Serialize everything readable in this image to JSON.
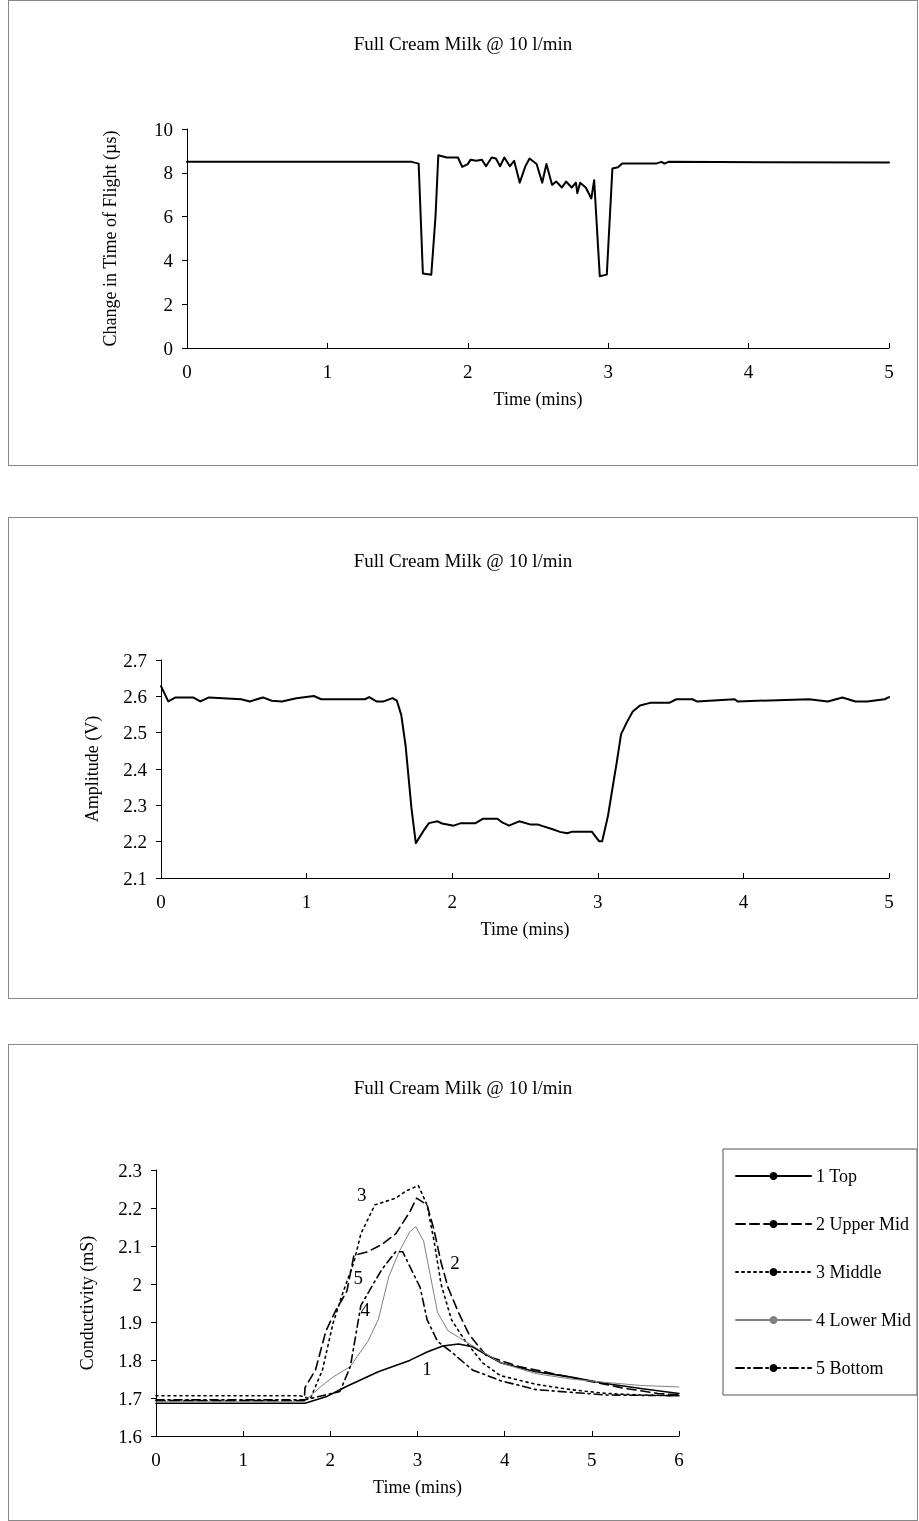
{
  "chart_data": [
    {
      "type": "line",
      "title": "Full Cream Milk @ 10 l/min",
      "xlabel": "Time (mins)",
      "ylabel": "Change in Time of Flight (µs)",
      "xlim": [
        0,
        5
      ],
      "xticks": [
        0,
        1,
        2,
        3,
        4,
        5
      ],
      "ylim": [
        0,
        10
      ],
      "yticks": [
        0,
        2,
        4,
        6,
        8,
        10
      ],
      "grid": false,
      "legend": false,
      "marker": "none",
      "line_style": "solid",
      "color": "#000000",
      "x": [
        0,
        1.6,
        1.65,
        1.68,
        1.74,
        1.77,
        1.79,
        1.85,
        1.93,
        1.96,
        2.0,
        2.02,
        2.06,
        2.1,
        2.13,
        2.17,
        2.2,
        2.23,
        2.26,
        2.3,
        2.33,
        2.37,
        2.41,
        2.44,
        2.49,
        2.53,
        2.56,
        2.6,
        2.63,
        2.67,
        2.7,
        2.74,
        2.77,
        2.78,
        2.8,
        2.84,
        2.88,
        2.9,
        2.94,
        2.99,
        3.03,
        3.07,
        3.1,
        3.34,
        3.38,
        3.4,
        3.43,
        5.0
      ],
      "values": [
        8.5,
        8.5,
        8.42,
        3.4,
        3.35,
        6.0,
        8.8,
        8.7,
        8.7,
        8.27,
        8.4,
        8.6,
        8.55,
        8.6,
        8.3,
        8.7,
        8.65,
        8.3,
        8.7,
        8.3,
        8.55,
        7.55,
        8.3,
        8.65,
        8.4,
        7.55,
        8.4,
        7.45,
        7.6,
        7.33,
        7.6,
        7.33,
        7.55,
        7.07,
        7.55,
        7.33,
        6.83,
        7.66,
        3.28,
        3.35,
        8.2,
        8.25,
        8.42,
        8.42,
        8.5,
        8.42,
        8.5,
        8.47
      ]
    },
    {
      "type": "line",
      "title": "Full Cream Milk @ 10 l/min",
      "xlabel": "Time (mins)",
      "ylabel": "Amplitude (V)",
      "xlim": [
        0,
        5
      ],
      "xticks": [
        0,
        1,
        2,
        3,
        4,
        5
      ],
      "ylim": [
        2.1,
        2.7
      ],
      "yticks": [
        2.1,
        2.2,
        2.3,
        2.4,
        2.5,
        2.6,
        2.7
      ],
      "grid": false,
      "legend": false,
      "marker": "none",
      "line_style": "solid",
      "color": "#000000",
      "x": [
        0,
        0.05,
        0.1,
        0.22,
        0.27,
        0.33,
        0.55,
        0.61,
        0.7,
        0.76,
        0.83,
        0.93,
        1.05,
        1.1,
        1.4,
        1.43,
        1.48,
        1.53,
        1.59,
        1.62,
        1.65,
        1.68,
        1.7,
        1.72,
        1.75,
        1.81,
        1.84,
        1.9,
        1.93,
        2.01,
        2.06,
        2.16,
        2.21,
        2.31,
        2.34,
        2.39,
        2.46,
        2.54,
        2.59,
        2.69,
        2.74,
        2.79,
        2.82,
        2.96,
        3.01,
        3.03,
        3.07,
        3.1,
        3.13,
        3.16,
        3.2,
        3.24,
        3.29,
        3.36,
        3.49,
        3.54,
        3.65,
        3.68,
        3.94,
        3.96,
        4.45,
        4.58,
        4.68,
        4.77,
        4.85,
        4.97,
        5.0
      ],
      "values": [
        2.628,
        2.586,
        2.597,
        2.597,
        2.586,
        2.597,
        2.592,
        2.586,
        2.597,
        2.588,
        2.586,
        2.595,
        2.601,
        2.592,
        2.592,
        2.598,
        2.586,
        2.586,
        2.595,
        2.588,
        2.549,
        2.464,
        2.378,
        2.293,
        2.196,
        2.234,
        2.251,
        2.256,
        2.25,
        2.244,
        2.251,
        2.251,
        2.263,
        2.263,
        2.254,
        2.244,
        2.256,
        2.247,
        2.247,
        2.234,
        2.227,
        2.223,
        2.227,
        2.227,
        2.201,
        2.201,
        2.271,
        2.345,
        2.418,
        2.496,
        2.529,
        2.558,
        2.575,
        2.582,
        2.582,
        2.592,
        2.592,
        2.586,
        2.592,
        2.586,
        2.592,
        2.586,
        2.597,
        2.586,
        2.586,
        2.592,
        2.598
      ]
    },
    {
      "type": "line",
      "title": "Full Cream Milk @ 10 l/min",
      "xlabel": "Time (mins)",
      "ylabel": "Conductivity (mS)",
      "xlim": [
        0,
        6
      ],
      "xticks": [
        0,
        1,
        2,
        3,
        4,
        5,
        6
      ],
      "ylim": [
        1.6,
        2.3
      ],
      "yticks": [
        1.6,
        1.7,
        1.8,
        1.9,
        2,
        2.1,
        2.2,
        2.3
      ],
      "grid": false,
      "legend": "right",
      "marker": "none",
      "annotations": [
        {
          "text": "1",
          "x": 3.11,
          "y": 1.821
        },
        {
          "text": "2",
          "x": 3.27,
          "y": 2.057
        },
        {
          "text": "3",
          "x": 2.51,
          "y": 2.208
        },
        {
          "text": "4",
          "x": 2.55,
          "y": 1.906
        },
        {
          "text": "5",
          "x": 2.47,
          "y": 1.991
        }
      ],
      "series": [
        {
          "name": "1 Top",
          "color": "#000000",
          "line_style": "solid",
          "x": [
            0,
            1.71,
            1.95,
            2.19,
            2.55,
            2.91,
            3.11,
            3.29,
            3.47,
            3.63,
            3.96,
            4.36,
            4.76,
            5.16,
            5.56,
            6.0
          ],
          "values": [
            1.686,
            1.686,
            1.703,
            1.731,
            1.769,
            1.799,
            1.821,
            1.837,
            1.842,
            1.835,
            1.792,
            1.769,
            1.755,
            1.738,
            1.725,
            1.712
          ]
        },
        {
          "name": "2 Upper Mid",
          "color": "#000000",
          "line_style": "dashed",
          "x": [
            0,
            1.7,
            1.71,
            1.83,
            1.95,
            2.07,
            2.19,
            2.27,
            2.43,
            2.59,
            2.75,
            2.91,
            2.99,
            3.11,
            3.19,
            3.27,
            3.35,
            3.47,
            3.59,
            3.79,
            4.16,
            4.56,
            4.96,
            5.36,
            5.76,
            6.0
          ],
          "values": [
            1.693,
            1.693,
            1.728,
            1.774,
            1.877,
            1.934,
            1.981,
            2.075,
            2.085,
            2.104,
            2.132,
            2.189,
            2.226,
            2.208,
            2.142,
            2.057,
            1.991,
            1.925,
            1.868,
            1.811,
            1.783,
            1.764,
            1.745,
            1.726,
            1.712,
            1.708
          ]
        },
        {
          "name": "3 Middle",
          "color": "#000000",
          "line_style": "dotted",
          "x": [
            0,
            1.65,
            1.77,
            1.91,
            2.03,
            2.15,
            2.27,
            2.35,
            2.51,
            2.75,
            2.87,
            3.01,
            3.11,
            3.19,
            3.27,
            3.39,
            3.55,
            3.75,
            3.95,
            4.36,
            4.76,
            5.16,
            5.56,
            6.0
          ],
          "values": [
            1.706,
            1.706,
            1.698,
            1.774,
            1.896,
            1.981,
            2.057,
            2.132,
            2.208,
            2.226,
            2.245,
            2.259,
            2.208,
            2.113,
            2.0,
            1.906,
            1.849,
            1.792,
            1.759,
            1.736,
            1.722,
            1.712,
            1.708,
            1.706
          ]
        },
        {
          "name": "4 Lower Mid",
          "color": "#808080",
          "line_style": "solid",
          "x": [
            0,
            1.7,
            1.87,
            2.03,
            2.23,
            2.43,
            2.55,
            2.67,
            2.79,
            2.91,
            2.98,
            3.07,
            3.15,
            3.23,
            3.35,
            3.55,
            3.96,
            4.36,
            4.76,
            5.16,
            5.56,
            6.0
          ],
          "values": [
            1.69,
            1.69,
            1.726,
            1.755,
            1.783,
            1.849,
            1.906,
            2.019,
            2.085,
            2.137,
            2.151,
            2.113,
            2.019,
            1.925,
            1.877,
            1.849,
            1.792,
            1.764,
            1.75,
            1.741,
            1.733,
            1.729
          ]
        },
        {
          "name": "5 Bottom",
          "color": "#000000",
          "line_style": "dashdot",
          "x": [
            0,
            1.7,
            2.11,
            2.23,
            2.35,
            2.47,
            2.59,
            2.75,
            2.83,
            2.91,
            3.03,
            3.11,
            3.23,
            3.39,
            3.63,
            3.96,
            4.36,
            5.16,
            6.0
          ],
          "values": [
            1.695,
            1.695,
            1.717,
            1.783,
            1.943,
            1.991,
            2.038,
            2.085,
            2.085,
            2.047,
            1.991,
            1.906,
            1.849,
            1.821,
            1.774,
            1.745,
            1.722,
            1.708,
            1.706
          ]
        }
      ]
    }
  ]
}
